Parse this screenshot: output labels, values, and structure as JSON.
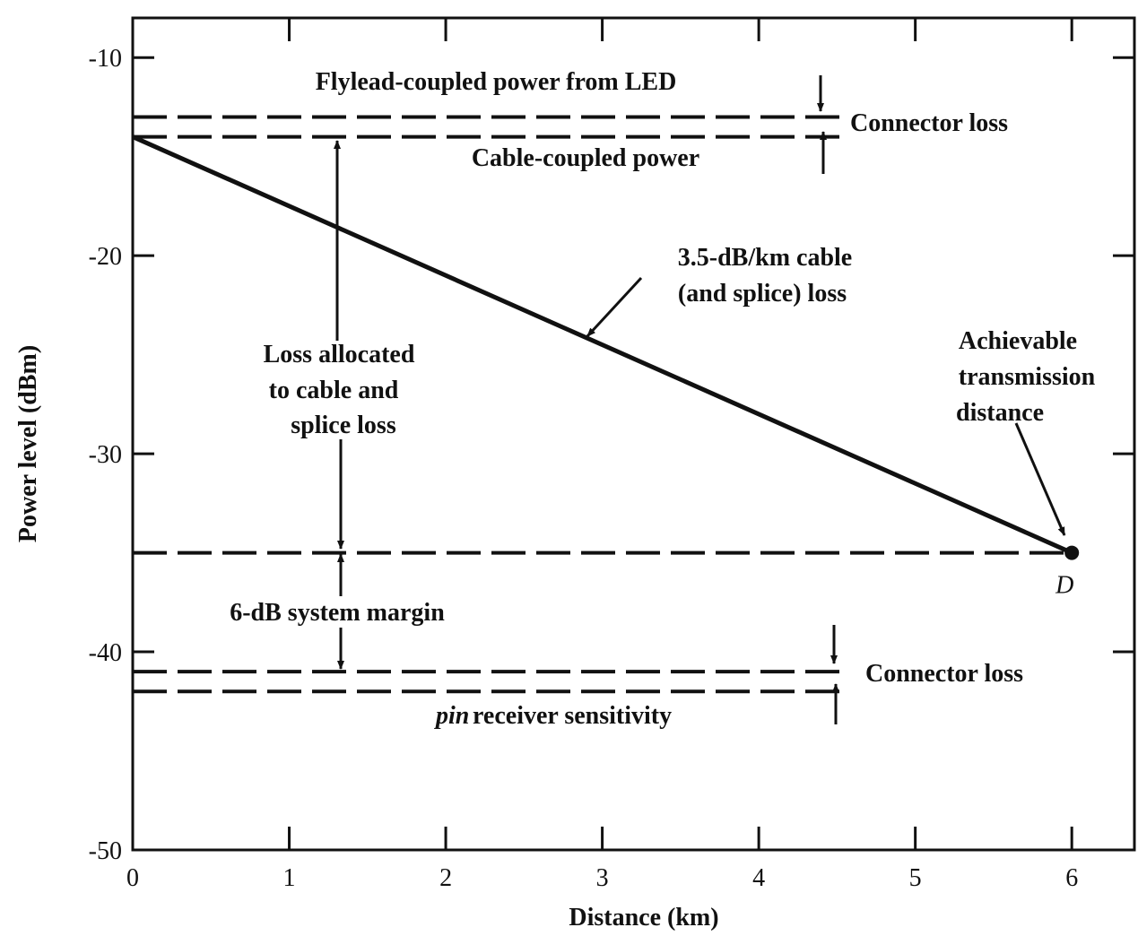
{
  "chart_data": {
    "type": "line",
    "xlabel": "Distance (km)",
    "ylabel": "Power level (dBm)",
    "xlim": [
      0,
      6.4
    ],
    "ylim": [
      -50,
      -8
    ],
    "xticks": [
      0,
      1,
      2,
      3,
      4,
      5,
      6
    ],
    "yticks": [
      -10,
      -20,
      -30,
      -40,
      -50
    ],
    "grid": false,
    "series": [
      {
        "color": "#111111",
        "dashed": true,
        "x": [
          0,
          4.55
        ],
        "values": [
          -13,
          -13
        ]
      },
      {
        "color": "#111111",
        "dashed": true,
        "x": [
          0,
          4.55
        ],
        "values": [
          -14,
          -14
        ]
      },
      {
        "color": "#111111",
        "dashed": false,
        "x": [
          0,
          6
        ],
        "values": [
          -14,
          -35
        ]
      },
      {
        "color": "#111111",
        "dashed": true,
        "x": [
          0,
          6
        ],
        "values": [
          -35,
          -35
        ]
      },
      {
        "color": "#111111",
        "dashed": true,
        "x": [
          0,
          4.55
        ],
        "values": [
          -41,
          -41
        ]
      },
      {
        "color": "#111111",
        "dashed": true,
        "x": [
          0,
          4.55
        ],
        "values": [
          -42,
          -42
        ]
      }
    ],
    "points": [
      {
        "x": 6,
        "y": -35,
        "label": "D"
      }
    ],
    "annotations": [
      "Flylead-coupled power from LED",
      "Connector loss",
      "Cable-coupled power",
      "3.5-dB/km cable",
      "(and splice) loss",
      "Loss allocated",
      "to cable and",
      "splice loss",
      "Achievable",
      "transmission",
      "distance",
      "6-dB system margin",
      "Connector loss",
      "pin",
      "receiver sensitivity"
    ]
  }
}
